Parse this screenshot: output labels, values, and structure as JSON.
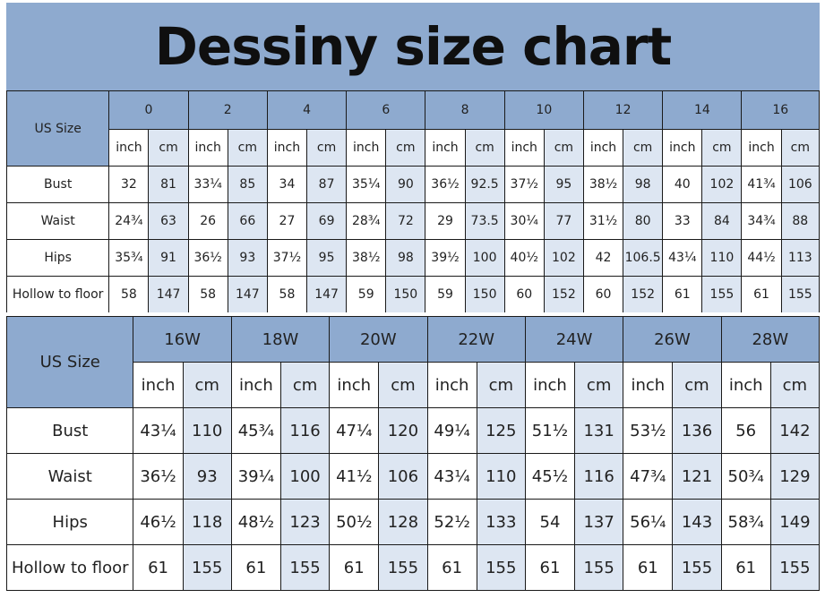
{
  "title": "Dessiny size chart",
  "table1": {
    "header_label": "US Size",
    "sizes": [
      "0",
      "2",
      "4",
      "6",
      "8",
      "10",
      "12",
      "14",
      "16"
    ],
    "units": [
      "inch",
      "cm"
    ],
    "rows": [
      {
        "label": "Bust",
        "values": [
          "32",
          "81",
          "33¼",
          "85",
          "34",
          "87",
          "35¼",
          "90",
          "36½",
          "92.5",
          "37½",
          "95",
          "38½",
          "98",
          "40",
          "102",
          "41¾",
          "106"
        ]
      },
      {
        "label": "Waist",
        "values": [
          "24¾",
          "63",
          "26",
          "66",
          "27",
          "69",
          "28¾",
          "72",
          "29",
          "73.5",
          "30¼",
          "77",
          "31½",
          "80",
          "33",
          "84",
          "34¾",
          "88"
        ]
      },
      {
        "label": "Hips",
        "values": [
          "35¾",
          "91",
          "36½",
          "93",
          "37½",
          "95",
          "38½",
          "98",
          "39½",
          "100",
          "40½",
          "102",
          "42",
          "106.5",
          "43¼",
          "110",
          "44½",
          "113"
        ]
      },
      {
        "label": "Hollow to floor",
        "values": [
          "58",
          "147",
          "58",
          "147",
          "58",
          "147",
          "59",
          "150",
          "59",
          "150",
          "60",
          "152",
          "60",
          "152",
          "61",
          "155",
          "61",
          "155"
        ]
      }
    ]
  },
  "table2": {
    "header_label": "US Size",
    "sizes": [
      "16W",
      "18W",
      "20W",
      "22W",
      "24W",
      "26W",
      "28W"
    ],
    "units": [
      "inch",
      "cm"
    ],
    "rows": [
      {
        "label": "Bust",
        "values": [
          "43¼",
          "110",
          "45¾",
          "116",
          "47¼",
          "120",
          "49¼",
          "125",
          "51½",
          "131",
          "53½",
          "136",
          "56",
          "142"
        ]
      },
      {
        "label": "Waist",
        "values": [
          "36½",
          "93",
          "39¼",
          "100",
          "41½",
          "106",
          "43¼",
          "110",
          "45½",
          "116",
          "47¾",
          "121",
          "50¾",
          "129"
        ]
      },
      {
        "label": "Hips",
        "values": [
          "46½",
          "118",
          "48½",
          "123",
          "50½",
          "128",
          "52½",
          "133",
          "54",
          "137",
          "56¼",
          "143",
          "58¾",
          "149"
        ]
      },
      {
        "label": "Hollow to floor",
        "values": [
          "61",
          "155",
          "61",
          "155",
          "61",
          "155",
          "61",
          "155",
          "61",
          "155",
          "61",
          "155",
          "61",
          "155"
        ]
      }
    ]
  },
  "colors": {
    "header_blue": "#8eaacf",
    "cm_cell_light": "#dde6f2"
  }
}
